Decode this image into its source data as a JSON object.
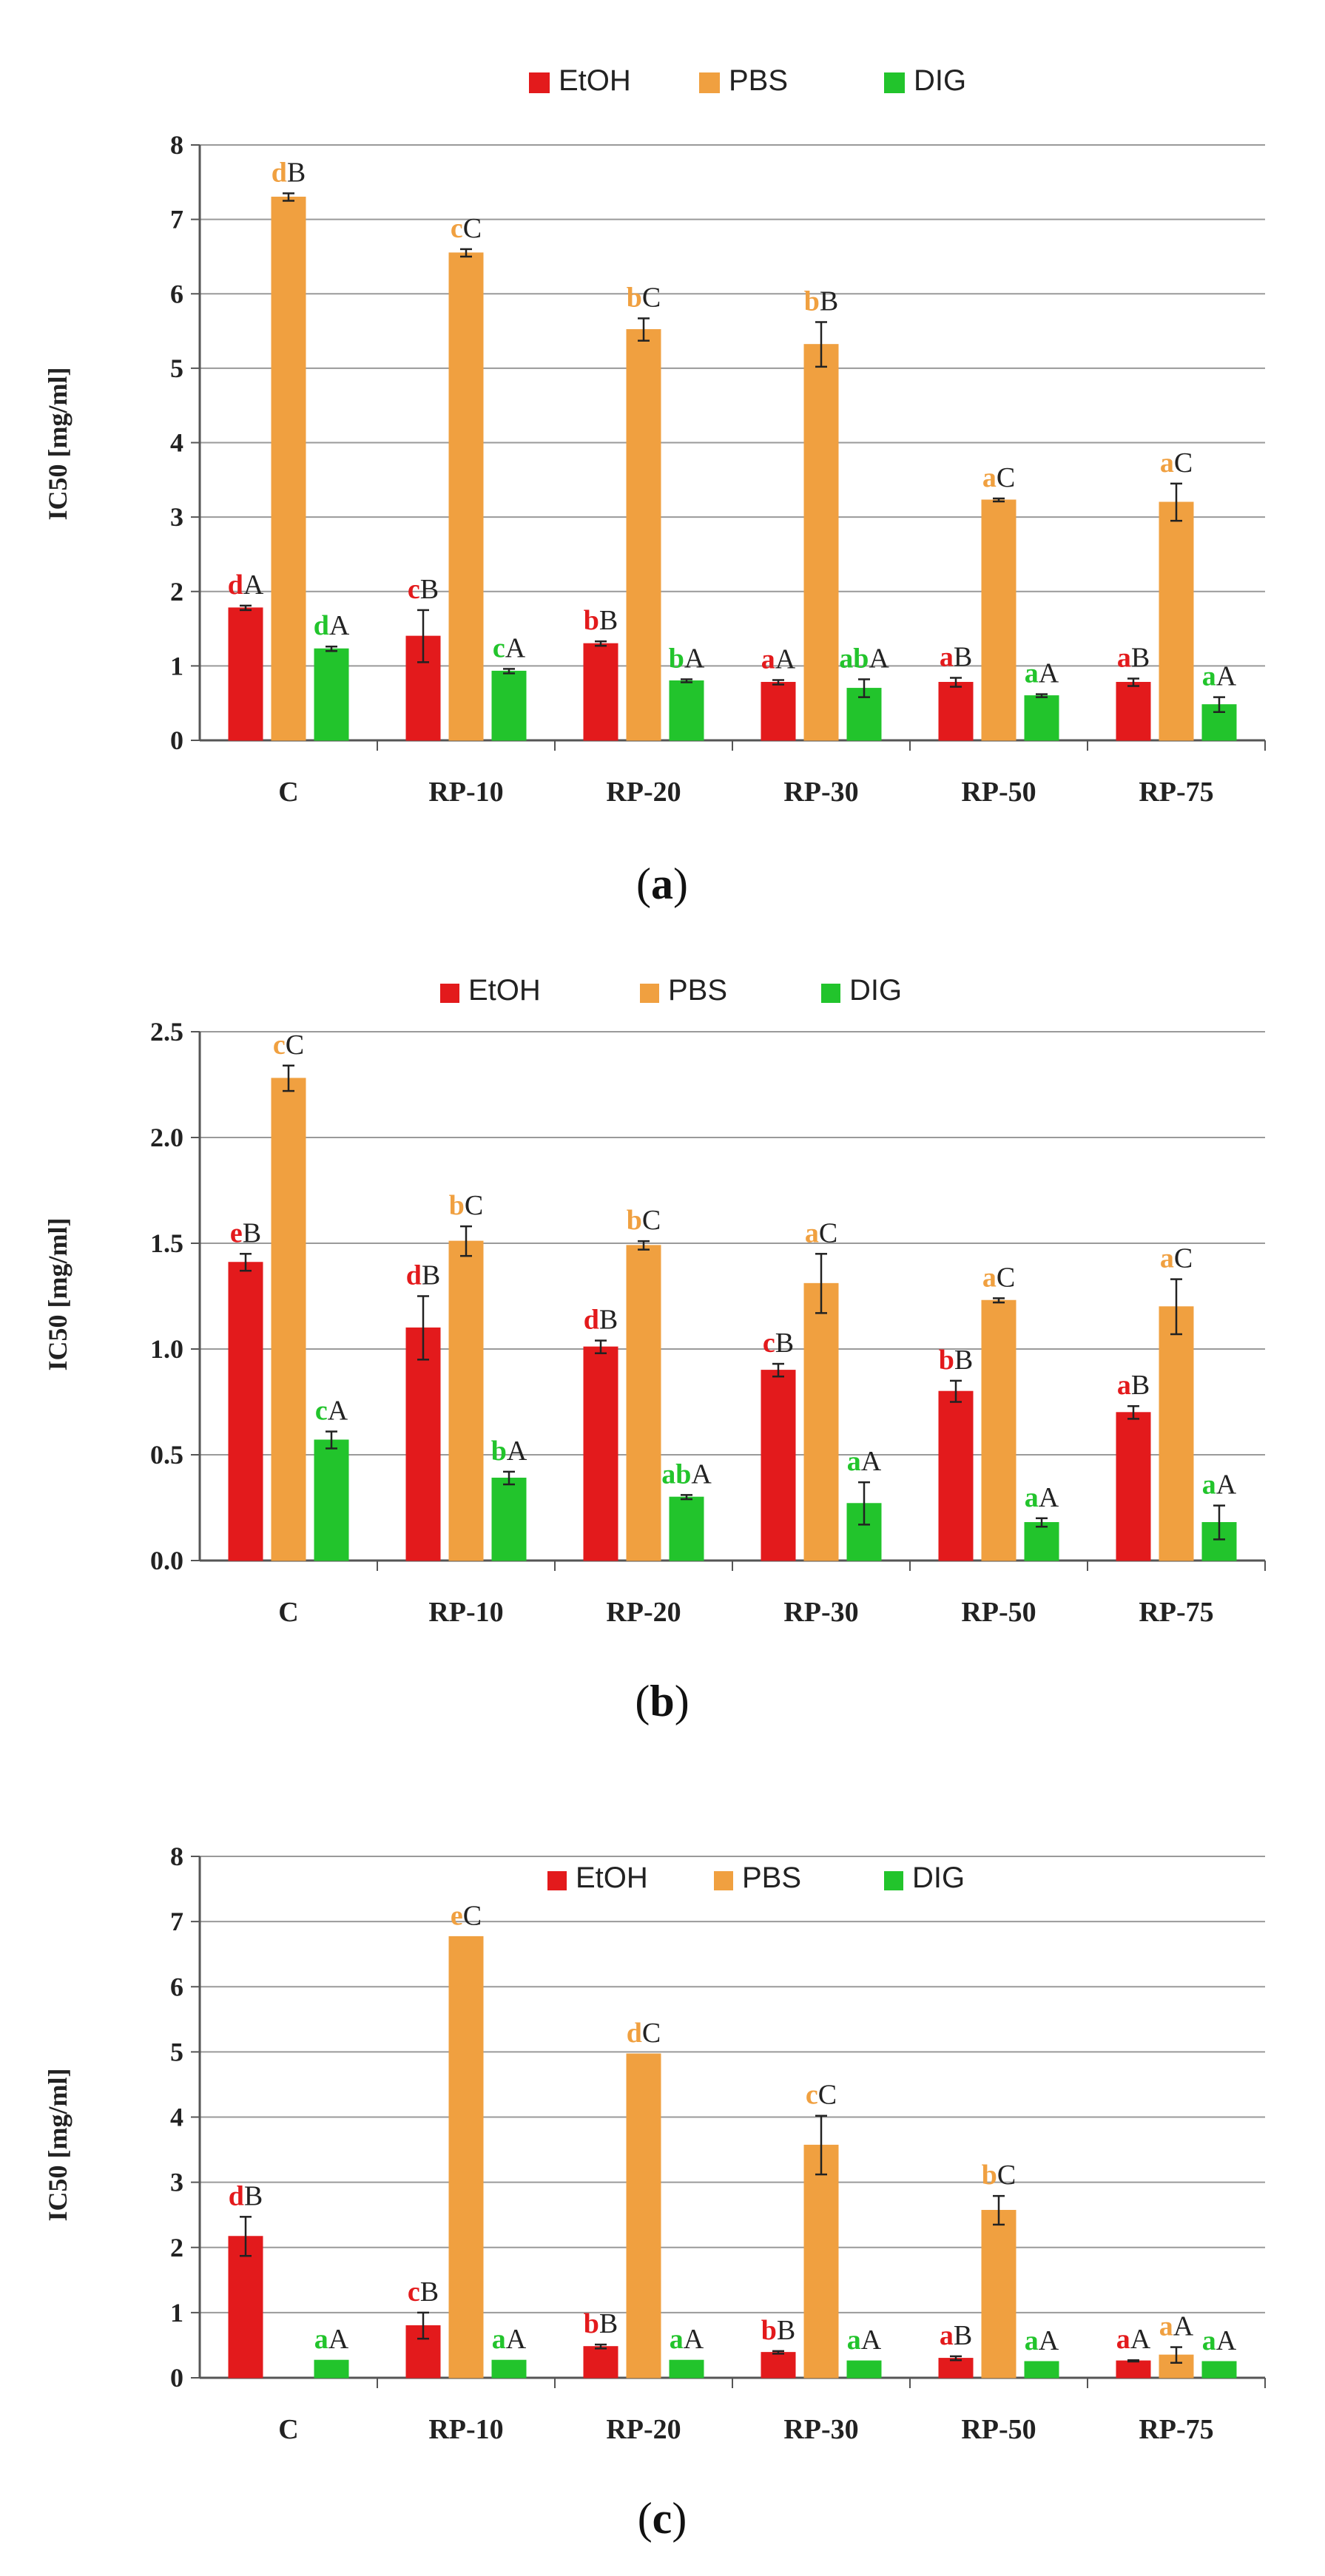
{
  "colors": {
    "EtOH": "#e31a1c",
    "PBS": "#f0a040",
    "DIG": "#22c42c",
    "black": "#222222"
  },
  "chart_data": [
    {
      "type": "bar",
      "caption": {
        "open": "(",
        "letter": "a",
        "close": ")"
      },
      "ylabel": "IC50 [mg/ml]",
      "ylim": [
        0,
        8
      ],
      "yticks": [
        "0",
        "1",
        "2",
        "3",
        "4",
        "5",
        "6",
        "7",
        "8"
      ],
      "yticks_values": [
        0,
        1,
        2,
        3,
        4,
        5,
        6,
        7,
        8
      ],
      "grid": true,
      "legend_position": "top-center",
      "categories": [
        "C",
        "RP-10",
        "RP-20",
        "RP-30",
        "RP-50",
        "RP-75"
      ],
      "series": [
        {
          "name": "EtOH",
          "values": [
            1.78,
            1.4,
            1.3,
            0.78,
            0.78,
            0.78
          ],
          "errors": [
            0.03,
            0.35,
            0.03,
            0.03,
            0.06,
            0.05
          ],
          "labels": [
            [
              "d",
              "A"
            ],
            [
              "c",
              "B"
            ],
            [
              "b",
              "B"
            ],
            [
              "a",
              "A"
            ],
            [
              "a",
              "B"
            ],
            [
              "a",
              "B"
            ]
          ]
        },
        {
          "name": "PBS",
          "values": [
            7.3,
            6.55,
            5.52,
            5.32,
            3.23,
            3.2
          ],
          "errors": [
            0.05,
            0.05,
            0.15,
            0.3,
            0.02,
            0.25
          ],
          "labels": [
            [
              "d",
              "B"
            ],
            [
              "c",
              "C"
            ],
            [
              "b",
              "C"
            ],
            [
              "b",
              "B"
            ],
            [
              "a",
              "C"
            ],
            [
              "a",
              "C"
            ]
          ]
        },
        {
          "name": "DIG",
          "values": [
            1.23,
            0.93,
            0.8,
            0.7,
            0.6,
            0.48
          ],
          "errors": [
            0.03,
            0.03,
            0.02,
            0.12,
            0.02,
            0.1
          ],
          "labels": [
            [
              "d",
              "A"
            ],
            [
              "c",
              "A"
            ],
            [
              "b",
              "A"
            ],
            [
              "ab",
              "A"
            ],
            [
              "a",
              "A"
            ],
            [
              "a",
              "A"
            ]
          ]
        }
      ]
    },
    {
      "type": "bar",
      "caption": {
        "open": "(",
        "letter": "b",
        "close": ")"
      },
      "ylabel": "IC50 [mg/ml]",
      "ylim": [
        0,
        2.5
      ],
      "yticks": [
        "0.0",
        "0.5",
        "1.0",
        "1.5",
        "2.0",
        "2.5"
      ],
      "yticks_values": [
        0,
        0.5,
        1.0,
        1.5,
        2.0,
        2.5
      ],
      "grid": true,
      "legend_position": "top-center",
      "categories": [
        "C",
        "RP-10",
        "RP-20",
        "RP-30",
        "RP-50",
        "RP-75"
      ],
      "series": [
        {
          "name": "EtOH",
          "values": [
            1.41,
            1.1,
            1.01,
            0.9,
            0.8,
            0.7
          ],
          "errors": [
            0.04,
            0.15,
            0.03,
            0.03,
            0.05,
            0.03
          ],
          "labels": [
            [
              "e",
              "B"
            ],
            [
              "d",
              "B"
            ],
            [
              "d",
              "B"
            ],
            [
              "c",
              "B"
            ],
            [
              "b",
              "B"
            ],
            [
              "a",
              "B"
            ]
          ]
        },
        {
          "name": "PBS",
          "values": [
            2.28,
            1.51,
            1.49,
            1.31,
            1.23,
            1.2
          ],
          "errors": [
            0.06,
            0.07,
            0.02,
            0.14,
            0.01,
            0.13
          ],
          "labels": [
            [
              "c",
              "C"
            ],
            [
              "b",
              "C"
            ],
            [
              "b",
              "C"
            ],
            [
              "a",
              "C"
            ],
            [
              "a",
              "C"
            ],
            [
              "a",
              "C"
            ]
          ]
        },
        {
          "name": "DIG",
          "values": [
            0.57,
            0.39,
            0.3,
            0.27,
            0.18,
            0.18
          ],
          "errors": [
            0.04,
            0.03,
            0.01,
            0.1,
            0.02,
            0.08
          ],
          "labels": [
            [
              "c",
              "A"
            ],
            [
              "b",
              "A"
            ],
            [
              "ab",
              "A"
            ],
            [
              "a",
              "A"
            ],
            [
              "a",
              "A"
            ],
            [
              "a",
              "A"
            ]
          ]
        }
      ]
    },
    {
      "type": "bar",
      "caption": {
        "open": "(",
        "letter": "c",
        "close": ")"
      },
      "ylabel": "IC50 [mg/ml]",
      "ylim": [
        0,
        8
      ],
      "yticks": [
        "0",
        "1",
        "2",
        "3",
        "4",
        "5",
        "6",
        "7",
        "8"
      ],
      "yticks_values": [
        0,
        1,
        2,
        3,
        4,
        5,
        6,
        7,
        8
      ],
      "grid": true,
      "legend_position": "top-right",
      "categories": [
        "C",
        "RP-10",
        "RP-20",
        "RP-30",
        "RP-50",
        "RP-75"
      ],
      "series": [
        {
          "name": "EtOH",
          "values": [
            2.17,
            0.8,
            0.48,
            0.39,
            0.3,
            0.26
          ],
          "errors": [
            0.3,
            0.2,
            0.03,
            0.02,
            0.03,
            0.01
          ],
          "labels": [
            [
              "d",
              "B"
            ],
            [
              "c",
              "B"
            ],
            [
              "b",
              "B"
            ],
            [
              "b",
              "B"
            ],
            [
              "a",
              "B"
            ],
            [
              "a",
              "A"
            ]
          ]
        },
        {
          "name": "PBS",
          "values": [
            0,
            6.77,
            4.97,
            3.57,
            2.57,
            0.35
          ],
          "errors": [
            0,
            0,
            0,
            0.45,
            0.22,
            0.12
          ],
          "labels": [
            null,
            [
              "e",
              "C"
            ],
            [
              "d",
              "C"
            ],
            [
              "c",
              "C"
            ],
            [
              "b",
              "C"
            ],
            [
              "a",
              "A"
            ]
          ]
        },
        {
          "name": "DIG",
          "values": [
            0.27,
            0.27,
            0.27,
            0.26,
            0.25,
            0.25
          ],
          "errors": [
            0,
            0,
            0,
            0,
            0,
            0
          ],
          "labels": [
            [
              "a",
              "A"
            ],
            [
              "a",
              "A"
            ],
            [
              "a",
              "A"
            ],
            [
              "a",
              "A"
            ],
            [
              "a",
              "A"
            ],
            [
              "a",
              "A"
            ]
          ]
        }
      ]
    }
  ]
}
